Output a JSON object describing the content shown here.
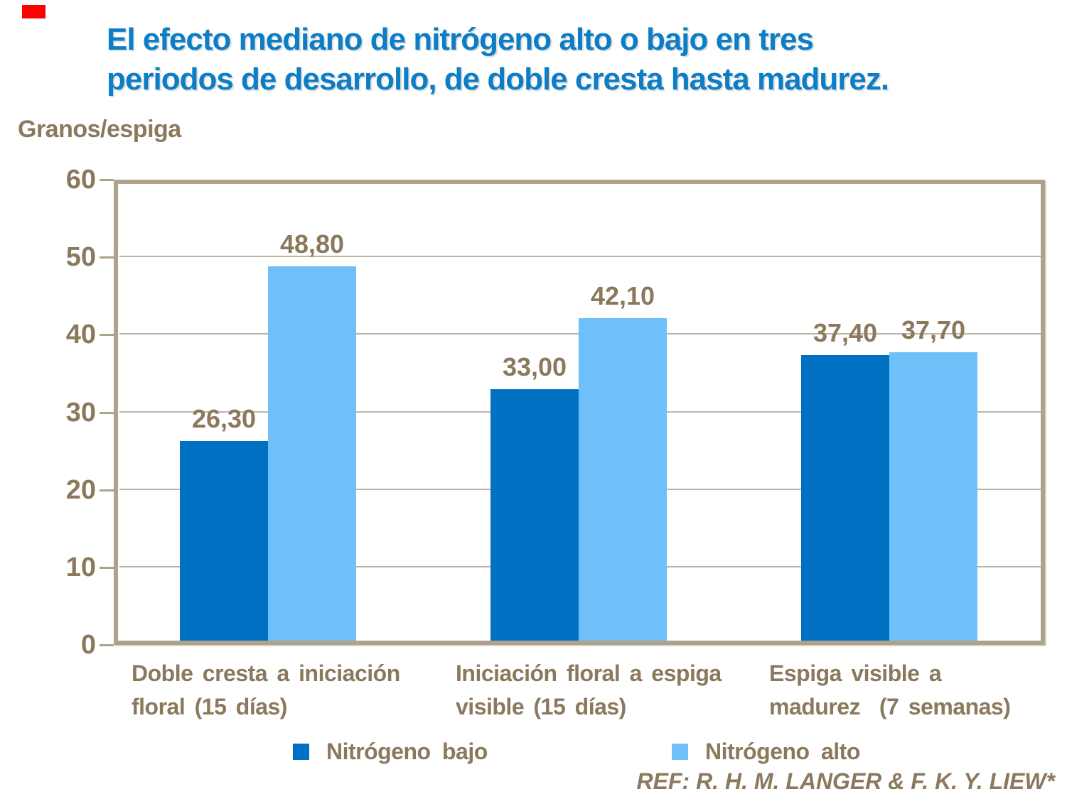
{
  "page": {
    "title_lines": [
      "El efecto mediano de nitrógeno alto o bajo en tres",
      "periodos de desarrollo, de doble cresta hasta madurez."
    ],
    "ylabel": "Granos/espiga",
    "ref": "REF: R. H. M. LANGER & F. K. Y. LIEW*"
  },
  "colors": {
    "title_blue": "#0D7DC6",
    "text_brown": "#8A795D",
    "bar_low_nitrogen": "#0070C2",
    "bar_high_nitrogen": "#6FC0F8",
    "gridline": "#BFB4A4",
    "plot_border": "#AFA28C",
    "accent_red": "#FF0000"
  },
  "legend": {
    "items": [
      {
        "label": "Nitrógeno bajo",
        "color": "#0070C2"
      },
      {
        "label": "Nitrógeno alto",
        "color": "#6FC0F8"
      }
    ]
  },
  "chart_data": {
    "type": "bar",
    "title": "El efecto mediano de nitrógeno alto o bajo en tres periodos de desarrollo, de doble cresta hasta madurez.",
    "ylabel": "Granos/espiga",
    "ylim": [
      0,
      60
    ],
    "yticks": [
      0,
      10,
      20,
      30,
      40,
      50,
      60
    ],
    "grid": true,
    "legend_position": "bottom",
    "categories": [
      "Doble cresta a iniciación floral (15 días)",
      "Iniciación floral a espiga visible (15 días)",
      "Espiga visible a madurez  (7 semanas)"
    ],
    "category_label_lines": [
      [
        "Doble cresta a iniciación",
        "floral (15 días)"
      ],
      [
        "Iniciación floral a espiga",
        "visible (15 días)"
      ],
      [
        "Espiga visible a",
        "madurez  (7 semanas)"
      ]
    ],
    "series": [
      {
        "name": "Nitrógeno bajo",
        "color": "#0070C2",
        "values": [
          26.3,
          33.0,
          37.4
        ],
        "labels": [
          "26,30",
          "33,00",
          "37,40"
        ]
      },
      {
        "name": "Nitrógeno alto",
        "color": "#6FC0F8",
        "values": [
          48.8,
          42.1,
          37.7
        ],
        "labels": [
          "48,80",
          "42,10",
          "37,70"
        ]
      }
    ],
    "reference": "REF: R. H. M. LANGER & F. K. Y. LIEW*"
  }
}
